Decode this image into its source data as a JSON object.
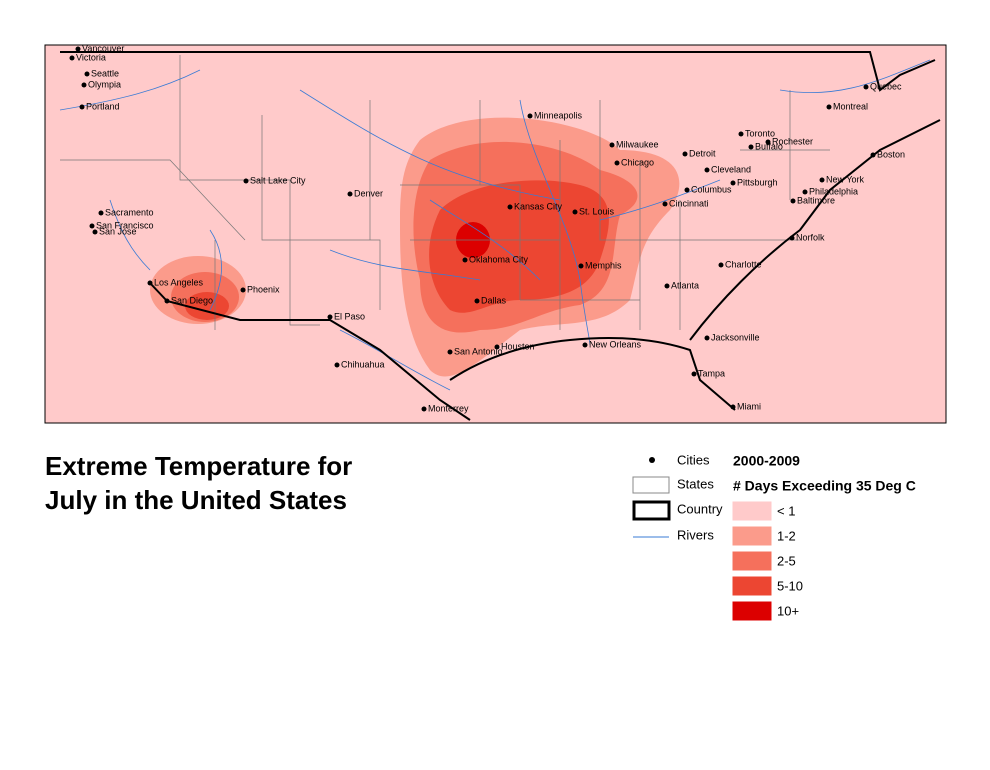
{
  "title": {
    "line1": "Extreme Temperature for",
    "line2": "July in the United States"
  },
  "map": {
    "cities": [
      "Vancouver",
      "Victoria",
      "Seattle",
      "Olympia",
      "Portland",
      "Sacramento",
      "San Francisco",
      "San Jose",
      "Los Angeles",
      "San Diego",
      "Phoenix",
      "Salt Lake City",
      "Denver",
      "El Paso",
      "Chihuahua",
      "Monterrey",
      "San Antonio",
      "Houston",
      "Dallas",
      "Oklahoma City",
      "Kansas City",
      "Minneapolis",
      "Milwaukee",
      "Chicago",
      "St. Louis",
      "Memphis",
      "New Orleans",
      "Atlanta",
      "Jacksonville",
      "Tampa",
      "Miami",
      "Charlotte",
      "Cincinnati",
      "Columbus",
      "Cleveland",
      "Detroit",
      "Pittsburgh",
      "Toronto",
      "Buffalo",
      "Rochester",
      "Montreal",
      "Quebec",
      "Boston",
      "New York",
      "Philadelphia",
      "Baltimore",
      "Norfolk"
    ]
  },
  "legend": {
    "layers": [
      "Cities",
      "States",
      "Country",
      "Rivers"
    ],
    "heading": "2000-2009",
    "subheading": "# Days Exceeding 35 Deg C",
    "classes": [
      {
        "label": "< 1",
        "color": "#ffcaca"
      },
      {
        "label": "1-2",
        "color": "#fb9b8b"
      },
      {
        "label": "2-5",
        "color": "#f5705c"
      },
      {
        "label": "5-10",
        "color": "#ec4632"
      },
      {
        "label": "10+",
        "color": "#dc0000"
      }
    ]
  }
}
